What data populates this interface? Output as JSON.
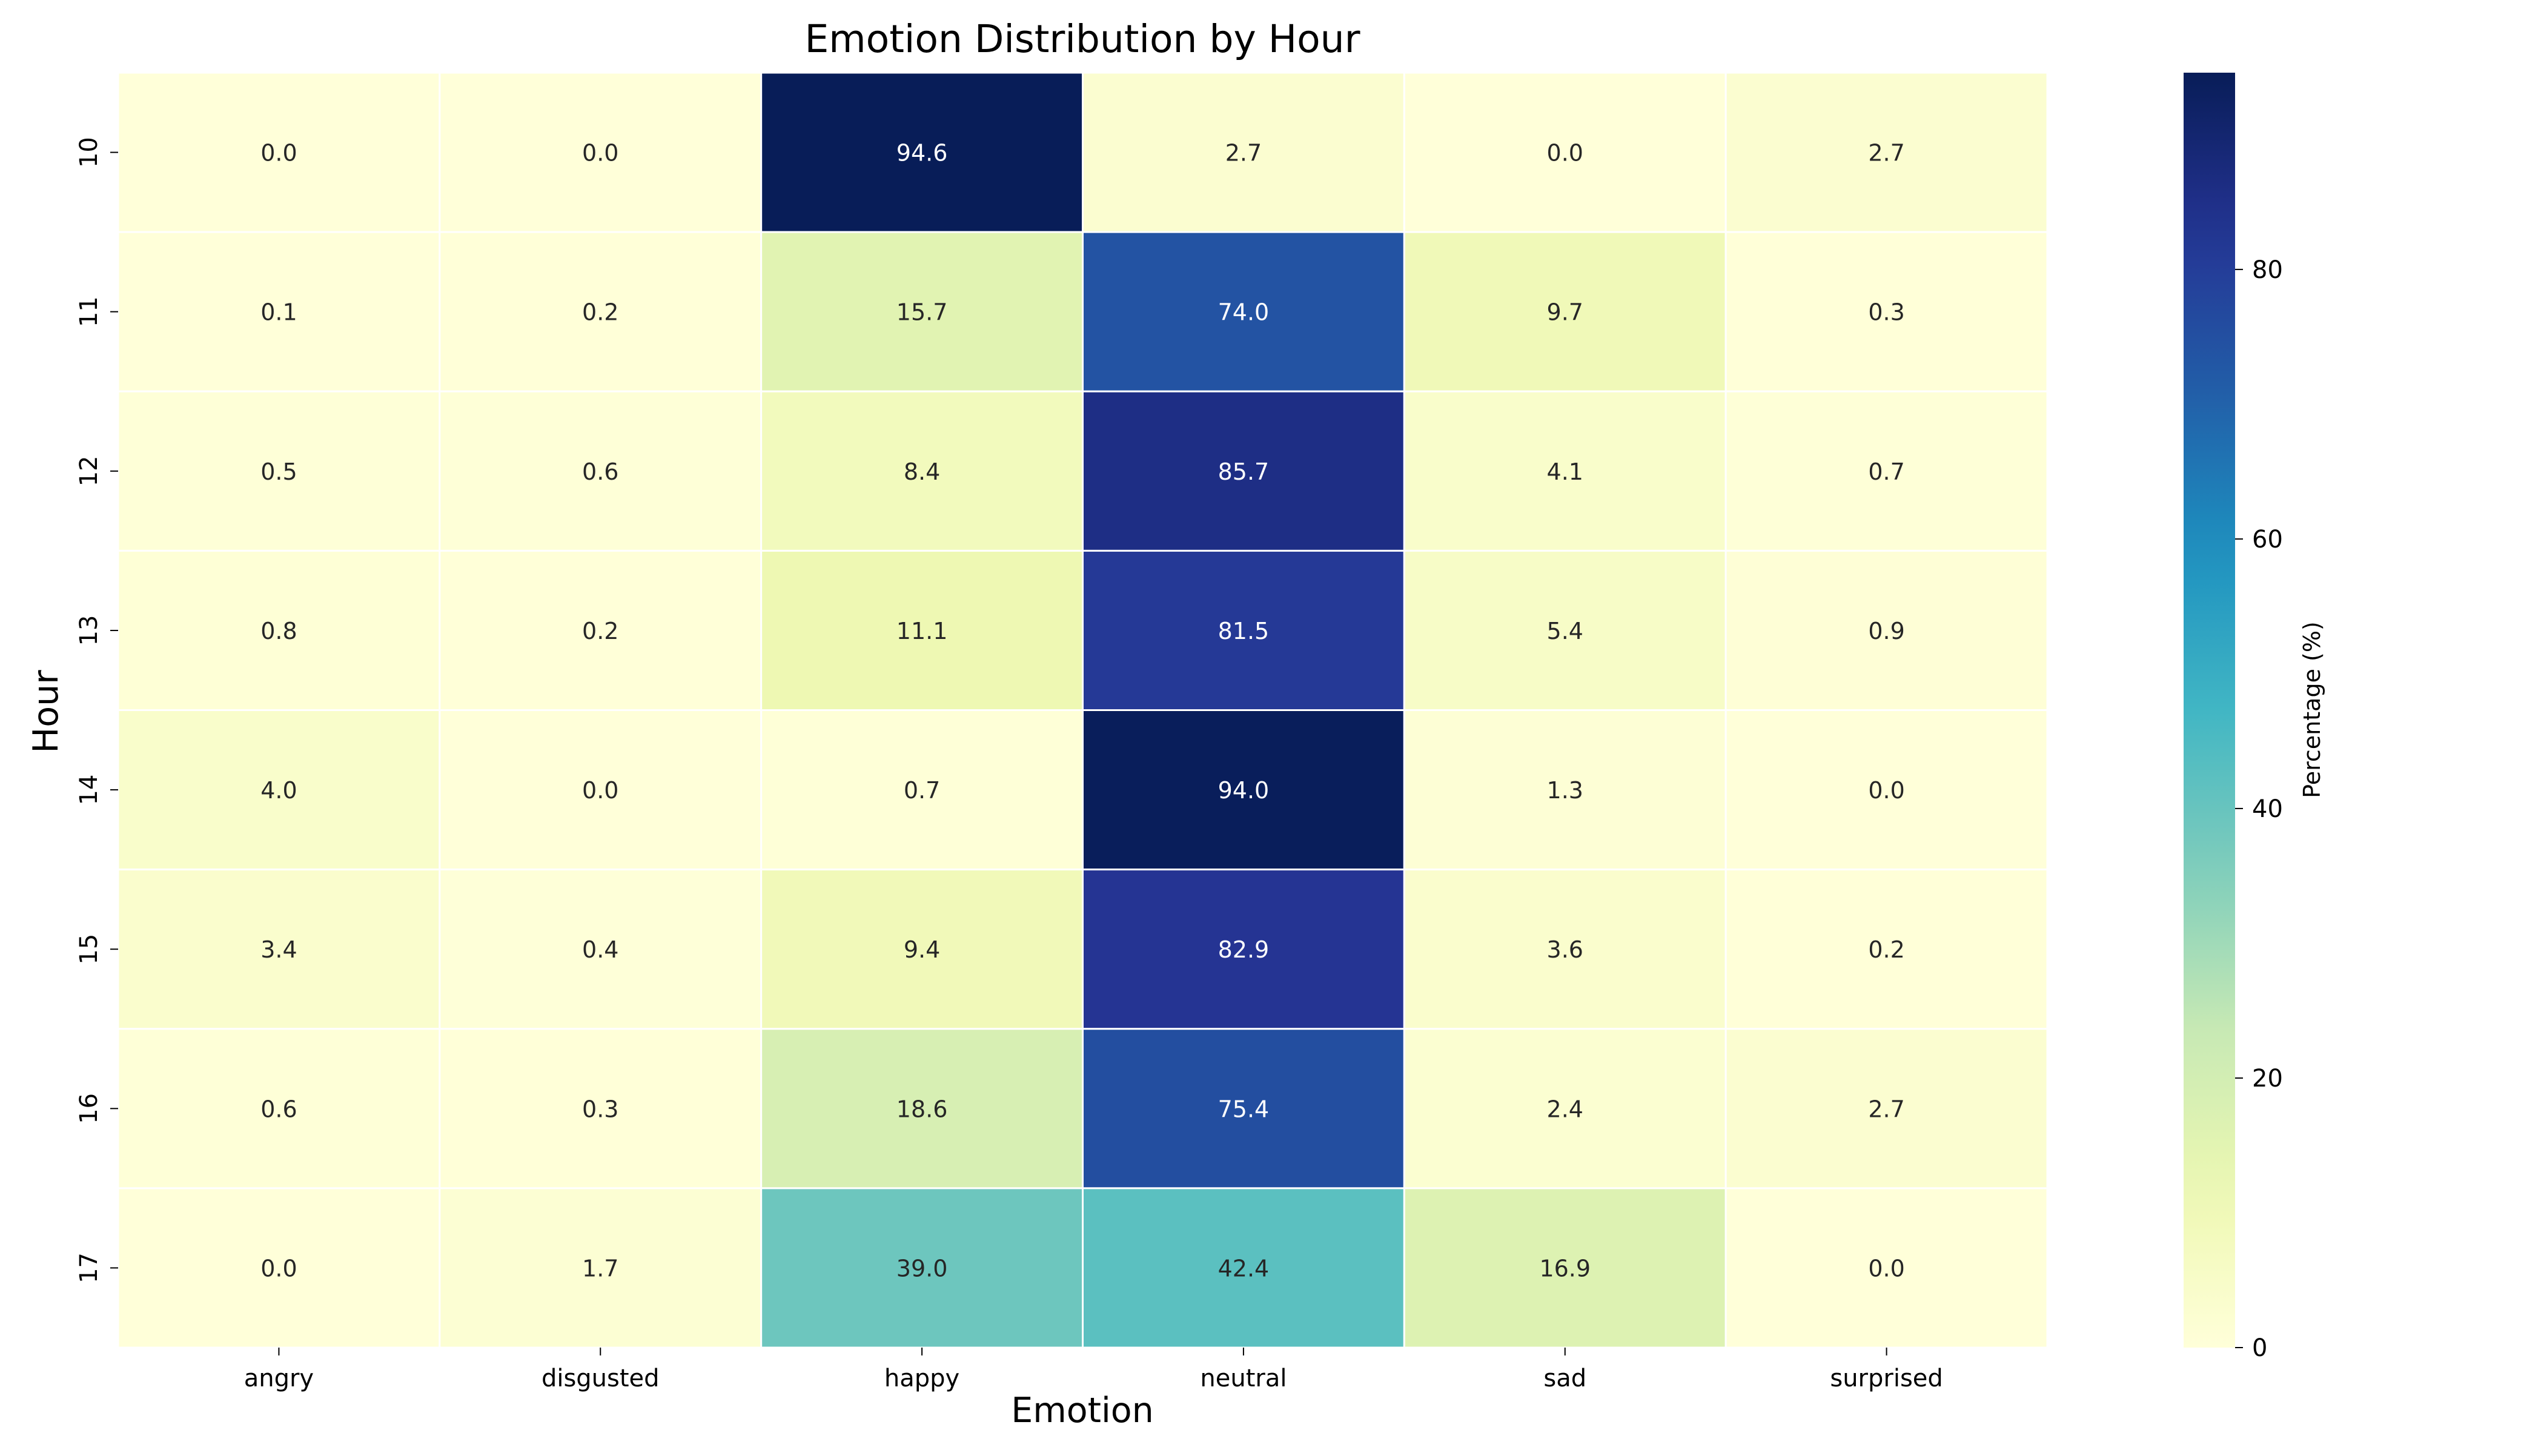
{
  "chart_data": {
    "type": "heatmap",
    "title": "Emotion Distribution by Hour",
    "xlabel": "Emotion",
    "ylabel": "Hour",
    "x_categories": [
      "angry",
      "disgusted",
      "happy",
      "neutral",
      "sad",
      "surprised"
    ],
    "y_categories": [
      "10",
      "11",
      "12",
      "13",
      "14",
      "15",
      "16",
      "17"
    ],
    "values": [
      [
        0.0,
        0.0,
        94.6,
        2.7,
        0.0,
        2.7
      ],
      [
        0.1,
        0.2,
        15.7,
        74.0,
        9.7,
        0.3
      ],
      [
        0.5,
        0.6,
        8.4,
        85.7,
        4.1,
        0.7
      ],
      [
        0.8,
        0.2,
        11.1,
        81.5,
        5.4,
        0.9
      ],
      [
        4.0,
        0.0,
        0.7,
        94.0,
        1.3,
        0.0
      ],
      [
        3.4,
        0.4,
        9.4,
        82.9,
        3.6,
        0.2
      ],
      [
        0.6,
        0.3,
        18.6,
        75.4,
        2.4,
        2.7
      ],
      [
        0.0,
        1.7,
        39.0,
        42.4,
        16.9,
        0.0
      ]
    ],
    "value_format": "0.0",
    "colormap": "YlGnBu",
    "color_range": [
      0,
      94.6
    ],
    "colorbar": {
      "label": "Percentage (%)",
      "ticks": [
        0,
        20,
        40,
        60,
        80
      ],
      "tick_labels": [
        "0",
        "20",
        "40",
        "60",
        "80"
      ]
    }
  }
}
